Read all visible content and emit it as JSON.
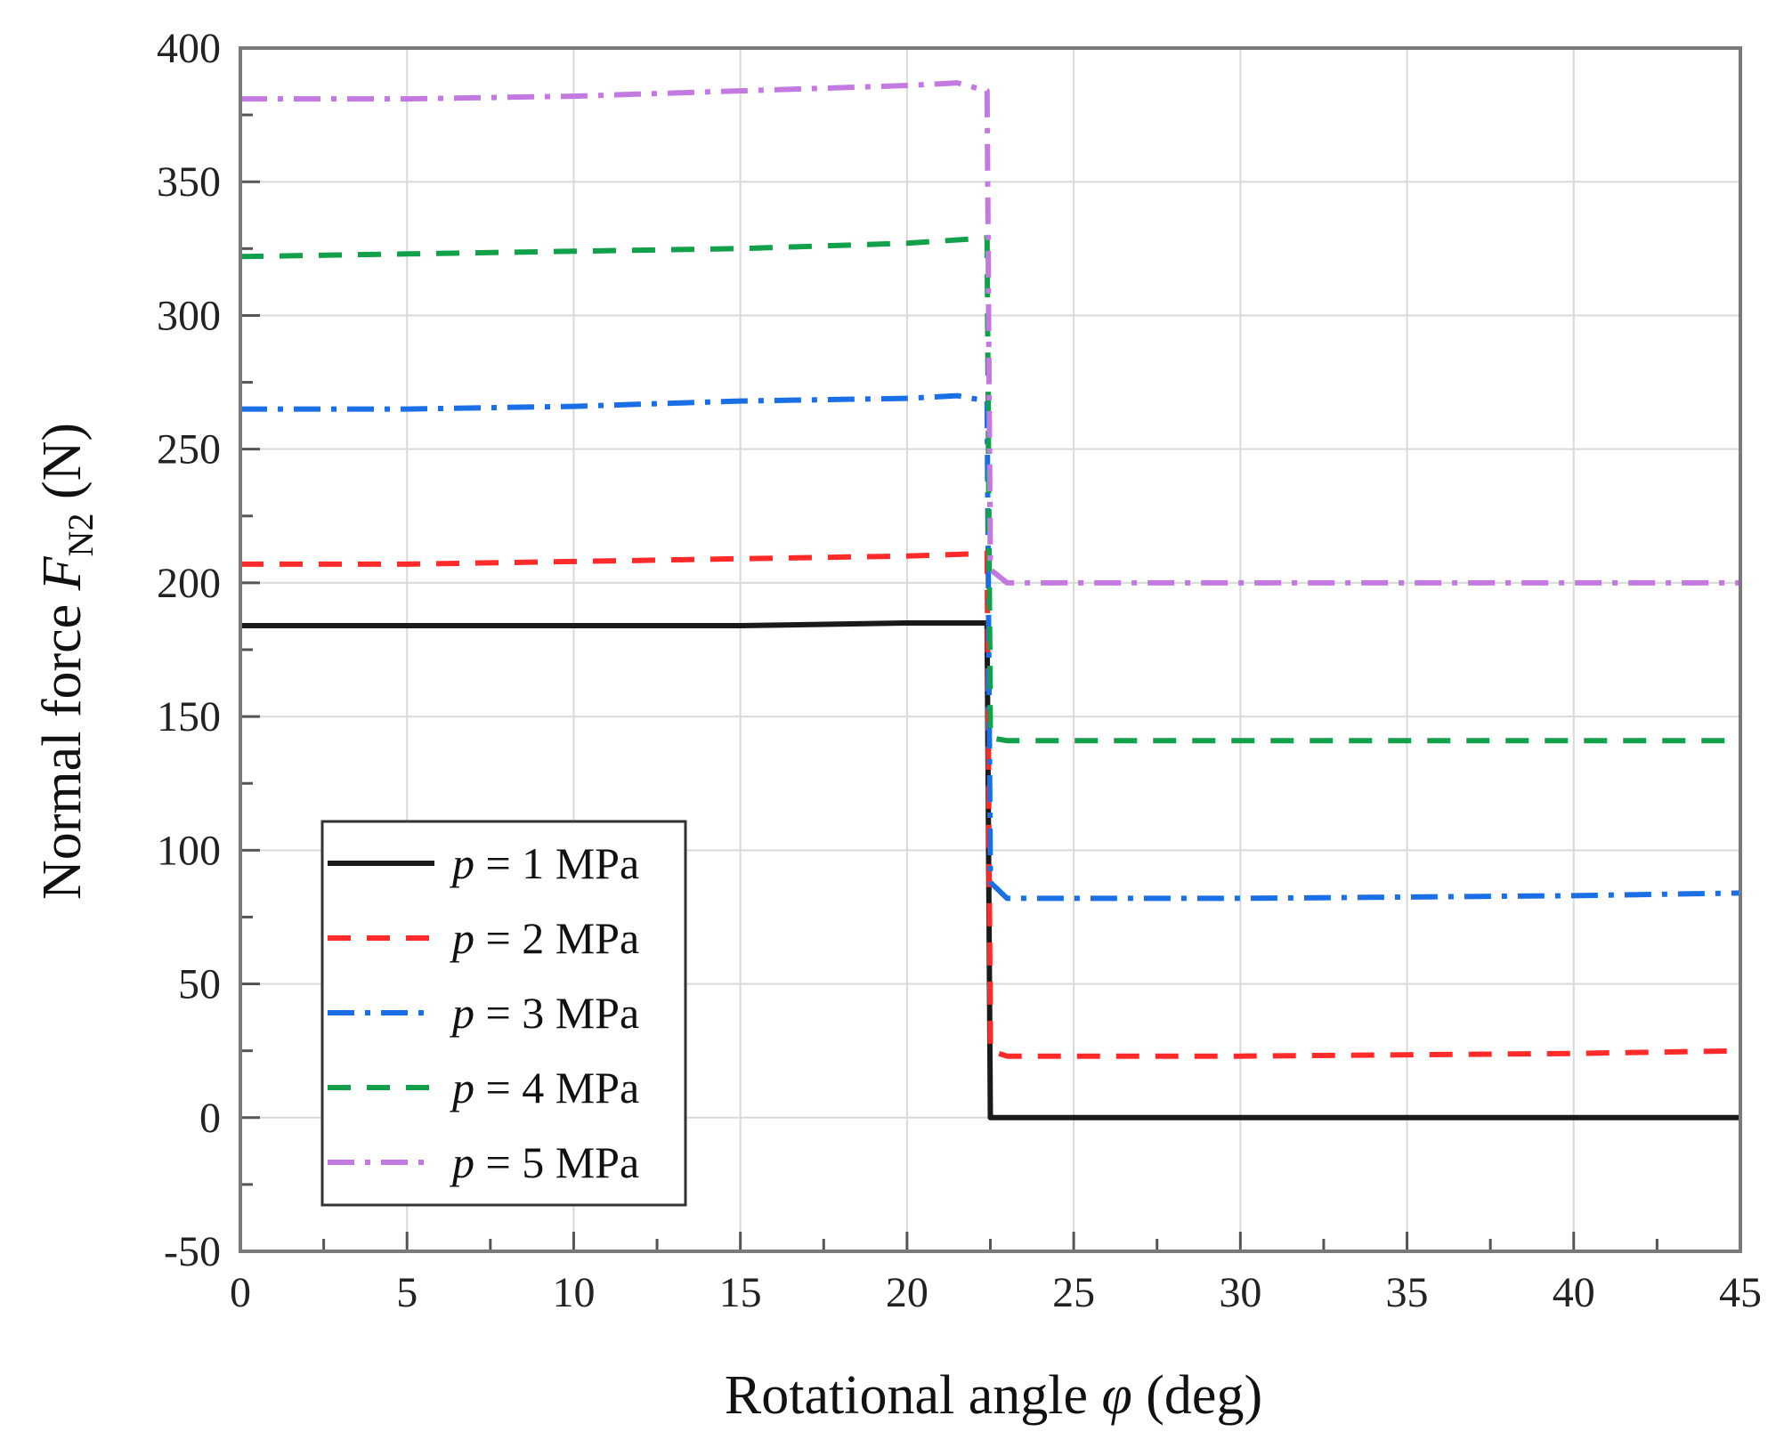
{
  "chart_data": {
    "type": "line",
    "title": "",
    "xlabel": "Rotational angle φ (deg)",
    "xlabel_parts": {
      "prefix": "Rotational angle ",
      "symbol": "φ",
      "suffix": " (deg)"
    },
    "ylabel": "Normal force FN2 (N)",
    "ylabel_parts": {
      "prefix": "Normal force ",
      "symbol": "F",
      "subscript": "N2",
      "suffix": " (N)"
    },
    "xlim": [
      0,
      45
    ],
    "ylim": [
      -50,
      400
    ],
    "xticks": [
      0,
      5,
      10,
      15,
      20,
      25,
      30,
      35,
      40,
      45
    ],
    "yticks": [
      -50,
      0,
      50,
      100,
      150,
      200,
      250,
      300,
      350,
      400
    ],
    "grid": true,
    "legend_position": "bottom-left",
    "series": [
      {
        "name": "p = 1 MPa",
        "p_symbol": "p",
        "p_value": "= 1 MPa",
        "color": "#1a1a1a",
        "dash": "solid",
        "x": [
          0,
          5,
          10,
          15,
          20,
          22.4,
          22.5,
          23,
          30,
          40,
          45
        ],
        "y": [
          184,
          184,
          184,
          184,
          185,
          185,
          0,
          0,
          0,
          0,
          0
        ]
      },
      {
        "name": "p = 2 MPa",
        "p_symbol": "p",
        "p_value": "= 2 MPa",
        "color": "#ff2a2a",
        "dash": "dash",
        "x": [
          0,
          5,
          10,
          15,
          20,
          22.4,
          22.5,
          23,
          30,
          40,
          45
        ],
        "y": [
          207,
          207,
          208,
          209,
          210,
          211,
          25,
          23,
          23,
          24,
          25
        ]
      },
      {
        "name": "p = 3 MPa",
        "p_symbol": "p",
        "p_value": "= 3 MPa",
        "color": "#1a6fe6",
        "dash": "dashdot",
        "x": [
          0,
          5,
          10,
          15,
          20,
          21.5,
          22.4,
          22.5,
          23,
          30,
          40,
          45
        ],
        "y": [
          265,
          265,
          266,
          268,
          269,
          270,
          268,
          88,
          82,
          82,
          83,
          84
        ]
      },
      {
        "name": "p = 4 MPa",
        "p_symbol": "p",
        "p_value": "= 4 MPa",
        "color": "#12a04a",
        "dash": "dash",
        "x": [
          0,
          5,
          10,
          15,
          20,
          22.4,
          22.5,
          23,
          30,
          40,
          45
        ],
        "y": [
          322,
          323,
          324,
          325,
          327,
          329,
          142,
          141,
          141,
          141,
          141
        ]
      },
      {
        "name": "p = 5 MPa",
        "p_symbol": "p",
        "p_value": "= 5 MPa",
        "color": "#c27ae0",
        "dash": "dashdot",
        "x": [
          0,
          5,
          10,
          15,
          20,
          21.5,
          22.4,
          22.5,
          23,
          30,
          40,
          45
        ],
        "y": [
          381,
          381,
          382,
          384,
          386,
          387,
          384,
          205,
          200,
          200,
          200,
          200
        ]
      }
    ]
  }
}
